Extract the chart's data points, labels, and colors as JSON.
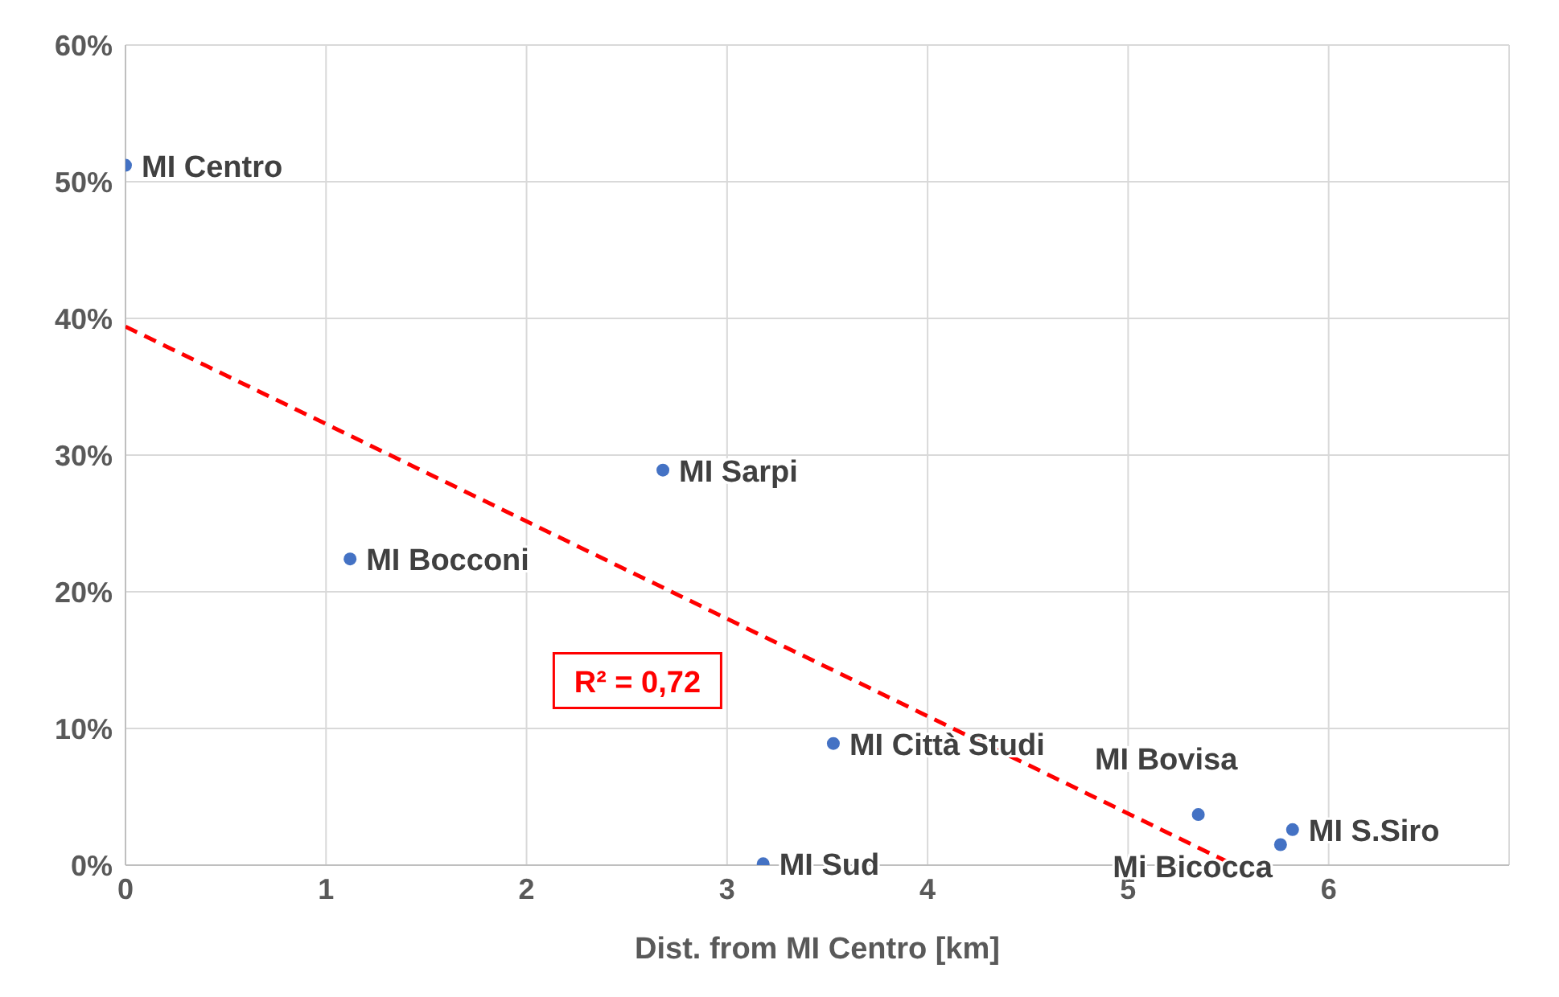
{
  "chart_data": {
    "type": "scatter",
    "xlabel": "Dist. from MI Centro [km]",
    "xlim": [
      0,
      6.9
    ],
    "xticks": [
      0,
      1,
      2,
      3,
      4,
      5,
      6
    ],
    "ylim": [
      0,
      60
    ],
    "yticks": [
      {
        "value": 0,
        "label": "0%"
      },
      {
        "value": 10,
        "label": "10%"
      },
      {
        "value": 20,
        "label": "20%"
      },
      {
        "value": 30,
        "label": "30%"
      },
      {
        "value": 40,
        "label": "40%"
      },
      {
        "value": 50,
        "label": "50%"
      },
      {
        "value": 60,
        "label": "60%"
      }
    ],
    "grid": true,
    "marker": "circle",
    "series": [
      {
        "type": "scatter",
        "color": "#4472c4",
        "x": [
          0,
          1.12,
          2.68,
          3.53,
          3.18,
          5.35,
          5.76,
          5.82
        ],
        "values": [
          51.2,
          22.4,
          28.9,
          8.9,
          0.1,
          3.7,
          1.5,
          2.6
        ]
      },
      {
        "type": "line",
        "color": "#ff0000",
        "line_style": "dashed",
        "marker": "none",
        "x": [
          0,
          5.53
        ],
        "values": [
          39.4,
          0
        ]
      }
    ],
    "annotations": [
      {
        "text": "MI Centro",
        "x": 0,
        "y": 51.2
      },
      {
        "text": "MI Bocconi",
        "x": 1.12,
        "y": 22.4
      },
      {
        "text": "MI Sarpi",
        "x": 2.68,
        "y": 28.9
      },
      {
        "text": "MI Città Studi",
        "x": 3.53,
        "y": 8.9
      },
      {
        "text": "MI Sud",
        "x": 3.18,
        "y": 0.1
      },
      {
        "text": "MI S.Siro",
        "x": 5.82,
        "y": 2.6
      },
      {
        "text": "MI Bovisa",
        "x": 5.35,
        "y": 3.7
      },
      {
        "text": "Mi Bicocca",
        "x": 5.76,
        "y": 1.5
      },
      "R² = 0,72"
    ]
  }
}
